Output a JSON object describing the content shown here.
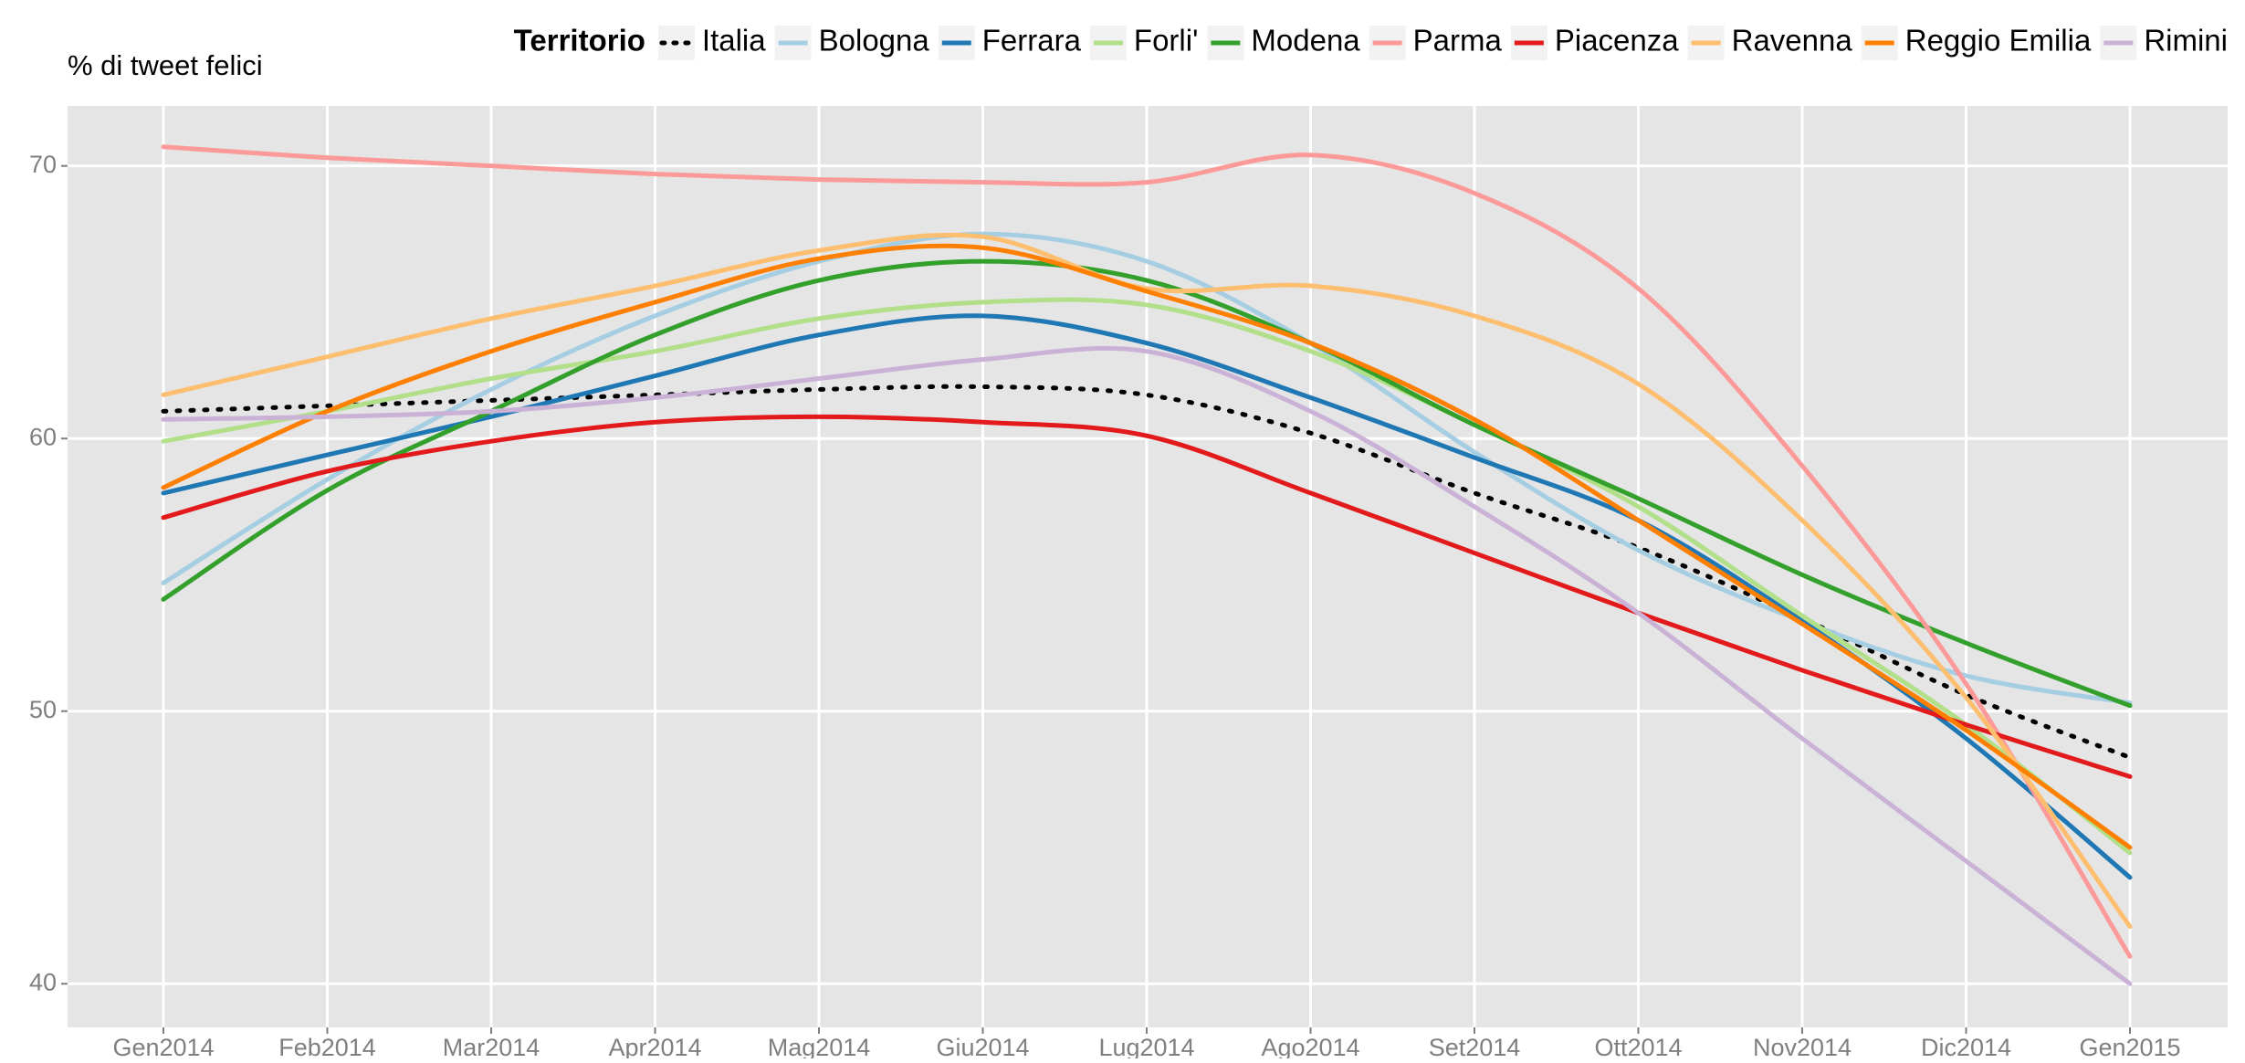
{
  "chart_data": {
    "type": "line",
    "ylabel": "% di tweet felici",
    "legend_title": "Territorio",
    "legend": "top",
    "grid": true,
    "categories": [
      "Gen2014",
      "Feb2014",
      "Mar2014",
      "Apr2014",
      "Mag2014",
      "Giu2014",
      "Lug2014",
      "Ago2014",
      "Set2014",
      "Ott2014",
      "Nov2014",
      "Dic2014",
      "Gen2015"
    ],
    "ylim": [
      38.4,
      72.2
    ],
    "yticks": [
      40,
      50,
      60,
      70
    ],
    "series": [
      {
        "name": "Italia",
        "color": "#000000",
        "dash": "dotted",
        "values": [
          61.0,
          61.2,
          61.4,
          61.6,
          61.8,
          61.9,
          61.6,
          60.2,
          58.0,
          56.0,
          53.4,
          50.6,
          48.3
        ]
      },
      {
        "name": "Bologna",
        "color": "#a6cee3",
        "values": [
          54.7,
          58.5,
          61.8,
          64.5,
          66.5,
          67.5,
          66.5,
          63.5,
          59.5,
          55.9,
          53.3,
          51.3,
          50.3
        ]
      },
      {
        "name": "Ferrara",
        "color": "#1f78b4",
        "values": [
          58.0,
          59.4,
          60.8,
          62.3,
          63.8,
          64.5,
          63.5,
          61.5,
          59.3,
          57.0,
          53.3,
          49.0,
          43.9
        ]
      },
      {
        "name": "Forli'",
        "color": "#b2df8a",
        "values": [
          59.9,
          61.0,
          62.2,
          63.2,
          64.4,
          65.0,
          64.9,
          63.2,
          60.5,
          57.5,
          53.5,
          49.5,
          44.8
        ]
      },
      {
        "name": "Modena",
        "color": "#33a02c",
        "values": [
          54.1,
          58.1,
          61.0,
          63.8,
          65.8,
          66.5,
          65.8,
          63.5,
          60.5,
          57.8,
          55.0,
          52.5,
          50.2
        ]
      },
      {
        "name": "Parma",
        "color": "#fb9a99",
        "values": [
          70.7,
          70.3,
          70.0,
          69.7,
          69.5,
          69.4,
          69.4,
          70.4,
          69.0,
          65.5,
          59.0,
          51.0,
          41.0
        ]
      },
      {
        "name": "Piacenza",
        "color": "#e31a1c",
        "values": [
          57.1,
          58.8,
          59.9,
          60.6,
          60.8,
          60.6,
          60.1,
          58.0,
          55.8,
          53.6,
          51.5,
          49.5,
          47.6
        ]
      },
      {
        "name": "Ravenna",
        "color": "#fdbf6f",
        "values": [
          61.6,
          63.0,
          64.4,
          65.6,
          66.9,
          67.4,
          65.5,
          65.6,
          64.5,
          62.0,
          57.0,
          50.5,
          42.1
        ]
      },
      {
        "name": "Reggio Emilia",
        "color": "#ff7f00",
        "values": [
          58.2,
          61.0,
          63.2,
          65.0,
          66.6,
          67.0,
          65.4,
          63.5,
          60.7,
          57.0,
          53.2,
          49.3,
          45.0
        ]
      },
      {
        "name": "Rimini",
        "color": "#cab2d6",
        "values": [
          60.7,
          60.8,
          61.0,
          61.5,
          62.2,
          62.9,
          63.2,
          61.0,
          57.5,
          53.6,
          49.0,
          44.5,
          40.0
        ]
      }
    ]
  }
}
